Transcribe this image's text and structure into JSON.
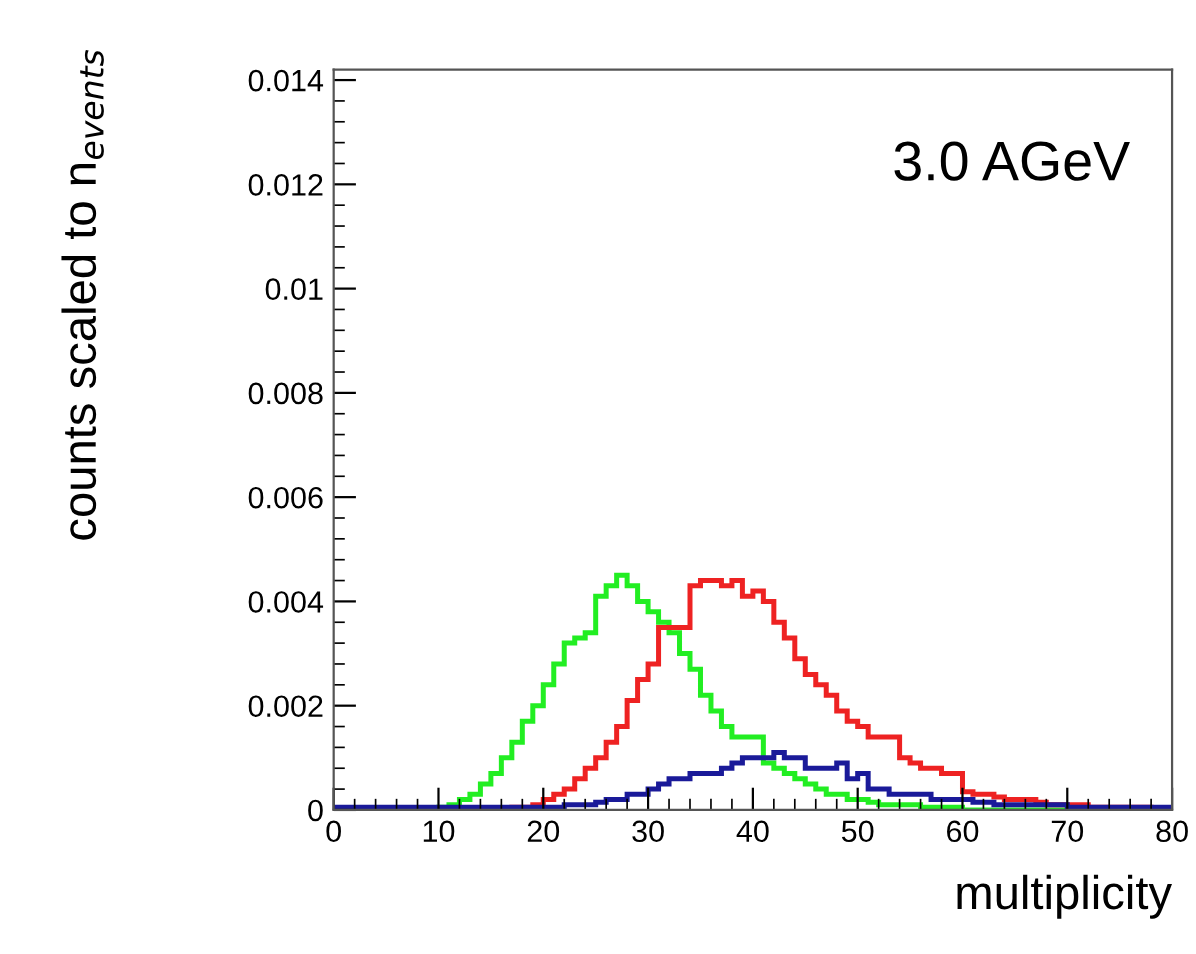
{
  "chart_data": {
    "type": "histogram",
    "xlabel": "multiplicity",
    "ylabel": "counts scaled to n$_{events}$",
    "annotations": [
      "3.0 AGeV"
    ],
    "bins": [
      0,
      1,
      2,
      3,
      4,
      5,
      6,
      7,
      8,
      9,
      10,
      11,
      12,
      13,
      14,
      15,
      16,
      17,
      18,
      19,
      20,
      21,
      22,
      23,
      24,
      25,
      26,
      27,
      28,
      29,
      30,
      31,
      32,
      33,
      34,
      35,
      36,
      37,
      38,
      39,
      40,
      41,
      42,
      43,
      44,
      45,
      46,
      47,
      48,
      49,
      50,
      51,
      52,
      53,
      54,
      55,
      56,
      57,
      58,
      59,
      60,
      61,
      62,
      63,
      64,
      65,
      66,
      67,
      68,
      69,
      70,
      71,
      72,
      73,
      74,
      75,
      76,
      77,
      78,
      79,
      80
    ],
    "series": [
      {
        "color": "#22ee22",
        "values": [
          0,
          0,
          0,
          0,
          0,
          0,
          0,
          0,
          0,
          0,
          5e-05,
          0.0001,
          0.0002,
          0.0003,
          0.0005,
          0.0007,
          0.001,
          0.0013,
          0.0017,
          0.002,
          0.0024,
          0.0028,
          0.0032,
          0.0033,
          0.0034,
          0.0041,
          0.0043,
          0.0045,
          0.0043,
          0.004,
          0.0038,
          0.0036,
          0.0034,
          0.003,
          0.0027,
          0.0022,
          0.0019,
          0.0016,
          0.0014,
          0.0014,
          0.0014,
          0.0009,
          0.0008,
          0.0007,
          0.0006,
          0.0005,
          0.0004,
          0.0003,
          0.0003,
          0.0002,
          0.0002,
          0.00015,
          0.0001,
          0.0001,
          0.0001,
          0.0001,
          5e-05,
          5e-05,
          5e-05,
          5e-05,
          0,
          0,
          0,
          0,
          0,
          0,
          0,
          0,
          0,
          0,
          0,
          0,
          0,
          0,
          0,
          0,
          0,
          0,
          0,
          0
        ]
      },
      {
        "color": "#ee2222",
        "values": [
          0,
          0,
          0,
          0,
          0,
          0,
          0,
          0,
          0,
          0,
          0,
          0,
          0,
          0,
          0,
          0,
          0,
          5e-05,
          5e-05,
          0.0001,
          0.0002,
          0.0003,
          0.0004,
          0.0006,
          0.0008,
          0.001,
          0.0013,
          0.0016,
          0.0021,
          0.0025,
          0.0028,
          0.0035,
          0.0035,
          0.0035,
          0.0043,
          0.0044,
          0.0044,
          0.0043,
          0.0044,
          0.0041,
          0.0042,
          0.004,
          0.0036,
          0.0033,
          0.0029,
          0.0026,
          0.0024,
          0.0022,
          0.0019,
          0.0017,
          0.0016,
          0.0014,
          0.0014,
          0.0014,
          0.001,
          0.0009,
          0.0008,
          0.0008,
          0.0007,
          0.0007,
          0.00035,
          0.0003,
          0.0003,
          0.00025,
          0.0002,
          0.0002,
          0.0002,
          0.00015,
          0.0001,
          0.0001,
          0.0001,
          0.0001,
          5e-05,
          5e-05,
          5e-05,
          5e-05,
          5e-05,
          5e-05,
          0,
          0
        ]
      },
      {
        "color": "#1a1a99",
        "values": [
          5e-05,
          5e-05,
          5e-05,
          5e-05,
          5e-05,
          5e-05,
          5e-05,
          5e-05,
          5e-05,
          5e-05,
          5e-05,
          5e-05,
          5e-05,
          5e-05,
          5e-05,
          5e-05,
          5e-05,
          5e-05,
          5e-05,
          5e-05,
          5e-05,
          5e-05,
          0.0001,
          0.0001,
          0.0001,
          0.00015,
          0.0002,
          0.0002,
          0.0003,
          0.0003,
          0.0004,
          0.0005,
          0.0006,
          0.0006,
          0.0007,
          0.0007,
          0.0007,
          0.0008,
          0.0009,
          0.001,
          0.001,
          0.001,
          0.0011,
          0.001,
          0.001,
          0.0008,
          0.0008,
          0.0008,
          0.0009,
          0.0006,
          0.0007,
          0.0004,
          0.0004,
          0.0003,
          0.0003,
          0.0003,
          0.0003,
          0.0002,
          0.0002,
          0.0002,
          0.0002,
          0.00015,
          0.00015,
          0.0001,
          0.0001,
          0.0001,
          0.0001,
          0.0001,
          0.0001,
          0.0001,
          5e-05,
          5e-05,
          5e-05,
          5e-05,
          5e-05,
          5e-05,
          5e-05,
          5e-05,
          5e-05,
          5e-05
        ]
      }
    ],
    "xlim": [
      0,
      80
    ],
    "xticks": [
      0,
      10,
      20,
      30,
      40,
      50,
      60,
      70,
      80
    ],
    "ylim": [
      0,
      0.0142
    ],
    "yticks": [
      0,
      0.002,
      0.004,
      0.006,
      0.008,
      0.01,
      0.012,
      0.014
    ],
    "grid": false,
    "legend": false
  }
}
